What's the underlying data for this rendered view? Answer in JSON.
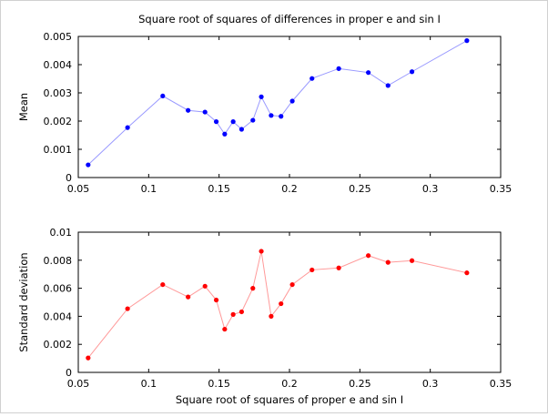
{
  "chart_data": [
    {
      "type": "line",
      "title": "Square root of squares of differences in proper e and sin I",
      "xlabel": "",
      "ylabel": "Mean",
      "xlim": [
        0.05,
        0.35
      ],
      "ylim": [
        0,
        0.005
      ],
      "xticks": [
        0.05,
        0.1,
        0.15,
        0.2,
        0.25,
        0.3,
        0.35
      ],
      "xtick_labels": [
        "0.05",
        "0.1",
        "0.15",
        "0.2",
        "0.25",
        "0.3",
        "0.35"
      ],
      "yticks": [
        0,
        0.001,
        0.002,
        0.003,
        0.004,
        0.005
      ],
      "ytick_labels": [
        "0",
        "0.001",
        "0.002",
        "0.003",
        "0.004",
        "0.005"
      ],
      "grid": false,
      "color": "#0000ff",
      "line_color": "#9999ff",
      "x": [
        0.057,
        0.085,
        0.11,
        0.128,
        0.14,
        0.148,
        0.154,
        0.16,
        0.166,
        0.174,
        0.18,
        0.187,
        0.194,
        0.202,
        0.216,
        0.235,
        0.256,
        0.27,
        0.287,
        0.326
      ],
      "y": [
        0.00045,
        0.00177,
        0.00289,
        0.00238,
        0.00232,
        0.00198,
        0.00154,
        0.00198,
        0.00171,
        0.00203,
        0.00286,
        0.0022,
        0.00217,
        0.00271,
        0.00351,
        0.00386,
        0.00372,
        0.00326,
        0.00375,
        0.00485
      ]
    },
    {
      "type": "line",
      "title": "",
      "xlabel": "Square root of squares of proper e and sin I",
      "ylabel": "Standard deviation",
      "xlim": [
        0.05,
        0.35
      ],
      "ylim": [
        0,
        0.01
      ],
      "xticks": [
        0.05,
        0.1,
        0.15,
        0.2,
        0.25,
        0.3,
        0.35
      ],
      "xtick_labels": [
        "0.05",
        "0.1",
        "0.15",
        "0.2",
        "0.25",
        "0.3",
        "0.35"
      ],
      "yticks": [
        0,
        0.002,
        0.004,
        0.006,
        0.008,
        0.01
      ],
      "ytick_labels": [
        "0",
        "0.002",
        "0.004",
        "0.006",
        "0.008",
        "0.01"
      ],
      "grid": false,
      "color": "#ff0000",
      "line_color": "#ff9999",
      "x": [
        0.057,
        0.085,
        0.11,
        0.128,
        0.14,
        0.148,
        0.154,
        0.16,
        0.166,
        0.174,
        0.18,
        0.187,
        0.194,
        0.202,
        0.216,
        0.235,
        0.256,
        0.27,
        0.287,
        0.326
      ],
      "y": [
        0.00103,
        0.00454,
        0.00626,
        0.00538,
        0.00615,
        0.00516,
        0.00308,
        0.00413,
        0.00432,
        0.006,
        0.00864,
        0.004,
        0.0049,
        0.00626,
        0.00731,
        0.00745,
        0.00833,
        0.00785,
        0.00797,
        0.0071
      ]
    }
  ]
}
